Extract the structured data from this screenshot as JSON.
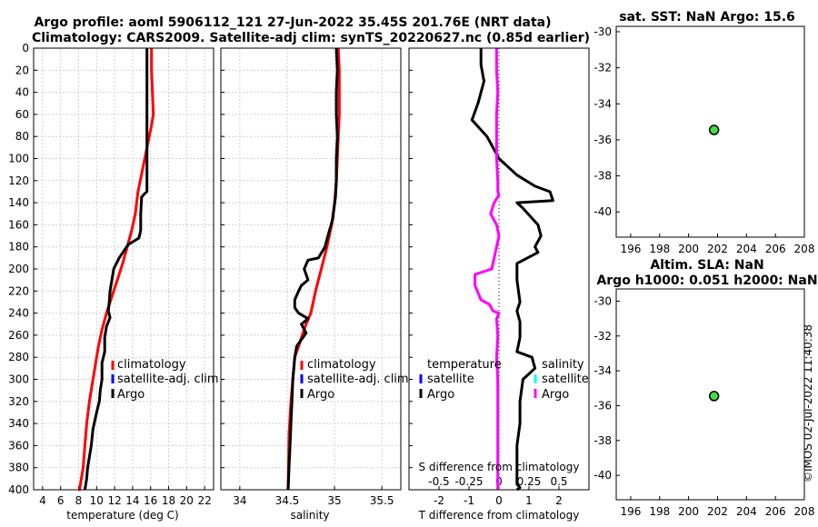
{
  "figure": {
    "title_line1": "Argo profile: aoml 5906112_121 27-Jun-2022 35.45S 201.76E (NRT data)",
    "title_line2": "Climatology: CARS2009. Satellite-adj clim: synTS_20220627.nc (0.85d earlier)",
    "signature": "©IMOS 02-Jul-2022 11:40:38"
  },
  "colors": {
    "climatology": "#ff0000",
    "satellite": "#0000ff",
    "argo": "#000000",
    "s_argo": "#ff00ff",
    "s_satellite": "#00ffff",
    "marker": "#44dd44",
    "grid": "#cfcfcf"
  },
  "chart_data": [
    {
      "id": "temperature",
      "type": "line",
      "xlabel": "temperature (deg C)",
      "xlim": [
        3,
        23
      ],
      "ylim": [
        0,
        400
      ],
      "y_inverted": true,
      "xticks": [
        "4",
        "6",
        "8",
        "10",
        "12",
        "14",
        "16",
        "18",
        "20",
        "22"
      ],
      "yticks": [
        "0",
        "20",
        "40",
        "60",
        "80",
        "100",
        "120",
        "140",
        "160",
        "180",
        "200",
        "220",
        "240",
        "260",
        "280",
        "300",
        "320",
        "340",
        "360",
        "380",
        "400"
      ],
      "legend": {
        "position": "lower-middle",
        "items": [
          "climatology",
          "satellite-adj. clim",
          "Argo"
        ]
      },
      "series": [
        {
          "name": "climatology",
          "color_key": "climatology",
          "x": [
            16.1,
            16.1,
            16.2,
            16.3,
            16.1,
            15.6,
            15.1,
            14.6,
            14.3,
            13.9,
            13.4,
            12.9,
            12.3,
            11.7,
            11.1,
            10.6,
            10.2,
            9.9,
            9.6,
            9.2,
            8.9,
            8.7,
            8.5,
            8.3,
            8.1,
            8.0
          ],
          "y": [
            0,
            20,
            40,
            60,
            70,
            90,
            110,
            130,
            150,
            165,
            180,
            195,
            210,
            225,
            240,
            255,
            270,
            285,
            300,
            320,
            340,
            360,
            380,
            390,
            400,
            400
          ]
        },
        {
          "name": "Argo",
          "color_key": "argo",
          "x": [
            15.6,
            15.6,
            15.6,
            15.6,
            15.6,
            15.6,
            15.6,
            15.6,
            15.3,
            15.0,
            14.9,
            14.9,
            14.7,
            13.5,
            12.5,
            11.9,
            11.7,
            11.5,
            11.4,
            11.3,
            11.5,
            11.1,
            10.9,
            10.9,
            10.6,
            10.6,
            10.4,
            10.3,
            10.0,
            9.6,
            9.4,
            9.2,
            9.0,
            8.9,
            8.8,
            8.7
          ],
          "y": [
            0,
            20,
            40,
            60,
            80,
            100,
            120,
            130,
            132,
            135,
            150,
            165,
            172,
            178,
            190,
            200,
            210,
            220,
            230,
            238,
            244,
            252,
            262,
            275,
            285,
            300,
            310,
            320,
            330,
            345,
            360,
            370,
            380,
            390,
            395,
            400
          ]
        }
      ]
    },
    {
      "id": "salinity",
      "type": "line",
      "xlabel": "salinity",
      "xlim": [
        33.8,
        35.7
      ],
      "ylim": [
        0,
        400
      ],
      "y_inverted": true,
      "xticks": [
        "34",
        "34.5",
        "35",
        "35.5"
      ],
      "legend": {
        "position": "lower-middle",
        "items": [
          "climatology",
          "satellite-adj. clim",
          "Argo"
        ]
      },
      "series": [
        {
          "name": "climatology",
          "color_key": "climatology",
          "x": [
            35.04,
            35.05,
            35.05,
            35.05,
            35.04,
            35.03,
            35.02,
            35.0,
            34.97,
            34.92,
            34.86,
            34.8,
            34.75,
            34.7,
            34.66,
            34.62,
            34.58,
            34.56,
            34.54,
            34.52,
            34.51
          ],
          "y": [
            0,
            20,
            40,
            60,
            80,
            100,
            120,
            140,
            160,
            180,
            200,
            220,
            240,
            250,
            260,
            270,
            280,
            300,
            320,
            350,
            400
          ]
        },
        {
          "name": "Argo",
          "color_key": "argo",
          "x": [
            35.02,
            35.03,
            35.02,
            35.02,
            35.03,
            35.02,
            35.02,
            35.01,
            34.98,
            34.93,
            34.9,
            34.83,
            34.72,
            34.68,
            34.72,
            34.65,
            34.62,
            34.58,
            34.58,
            34.62,
            34.72,
            34.65,
            34.7,
            34.6,
            34.58,
            34.56,
            34.55,
            34.54,
            34.53,
            34.52,
            34.51
          ],
          "y": [
            0,
            20,
            40,
            60,
            80,
            100,
            120,
            135,
            155,
            170,
            180,
            190,
            192,
            200,
            210,
            215,
            220,
            228,
            235,
            240,
            245,
            250,
            258,
            270,
            280,
            300,
            320,
            340,
            360,
            380,
            400
          ]
        }
      ]
    },
    {
      "id": "difference",
      "type": "line",
      "xlabel": "T difference from climatology",
      "xlabel_top": "S difference from climatology",
      "xlim": [
        -3,
        3
      ],
      "ylim": [
        0,
        400
      ],
      "y_inverted": true,
      "xticks": [
        "-2",
        "-1",
        "0",
        "1",
        "2"
      ],
      "xticks_top": [
        "-0.5",
        "-0.25",
        "0",
        "0.25",
        "0.5"
      ],
      "legend": {
        "position": "lower-middle",
        "temperature_title": "temperature",
        "salinity_title": "salinity",
        "items": [
          "satellite",
          "Argo"
        ]
      },
      "series": [
        {
          "name": "T difference Argo",
          "color_key": "argo",
          "x": [
            -0.6,
            -0.6,
            -0.5,
            -0.7,
            -0.9,
            -0.4,
            0.0,
            0.6,
            1.2,
            1.7,
            1.8,
            0.6,
            0.8,
            1.3,
            1.4,
            1.2,
            1.3,
            0.6,
            0.6,
            0.7,
            0.6,
            0.7,
            0.7,
            0.6,
            1.1,
            1.2,
            0.8,
            0.7,
            0.7,
            0.6,
            0.6,
            0.6,
            0.6,
            0.6,
            0.7,
            0.6
          ],
          "y": [
            0,
            15,
            30,
            50,
            65,
            80,
            100,
            115,
            125,
            130,
            138,
            140,
            145,
            160,
            170,
            180,
            185,
            195,
            210,
            230,
            238,
            248,
            262,
            275,
            280,
            290,
            300,
            320,
            340,
            360,
            370,
            380,
            390,
            395,
            398,
            400
          ]
        },
        {
          "name": "S difference Argo",
          "color_key": "s_argo",
          "x": [
            -0.02,
            -0.02,
            -0.01,
            -0.02,
            -0.02,
            -0.02,
            -0.01,
            -0.01,
            0.0,
            -0.04,
            -0.07,
            -0.02,
            0.0,
            -0.02,
            -0.04,
            -0.06,
            -0.2,
            -0.2,
            -0.15,
            -0.08,
            -0.05,
            0.0,
            -0.02,
            -0.01,
            -0.02,
            -0.01,
            -0.01,
            -0.01,
            -0.01,
            -0.01,
            -0.01
          ],
          "y": [
            0,
            20,
            40,
            60,
            80,
            100,
            120,
            130,
            133,
            140,
            150,
            160,
            170,
            180,
            190,
            200,
            205,
            215,
            228,
            232,
            238,
            240,
            245,
            260,
            280,
            300,
            320,
            340,
            360,
            380,
            400
          ]
        }
      ]
    },
    {
      "id": "sst_map",
      "type": "scatter",
      "title": "sat. SST: NaN Argo: 15.6",
      "xlim": [
        195,
        208
      ],
      "ylim": [
        -41.4,
        -29.7
      ],
      "xticks": [
        "196",
        "198",
        "200",
        "202",
        "204",
        "206",
        "208"
      ],
      "yticks": [
        "-30",
        "-32",
        "-34",
        "-36",
        "-38",
        "-40"
      ],
      "points": [
        {
          "x": 201.76,
          "y": -35.45
        }
      ]
    },
    {
      "id": "sla_map",
      "type": "scatter",
      "title1": "Altim. SLA: NaN",
      "title2": "Argo h1000: 0.051 h2000: NaN",
      "xlim": [
        195,
        208
      ],
      "ylim": [
        -41.4,
        -29.3
      ],
      "xticks": [
        "196",
        "198",
        "200",
        "202",
        "204",
        "206",
        "208"
      ],
      "yticks": [
        "-30",
        "-32",
        "-34",
        "-36",
        "-38",
        "-40"
      ],
      "points": [
        {
          "x": 201.76,
          "y": -35.45
        }
      ]
    }
  ]
}
